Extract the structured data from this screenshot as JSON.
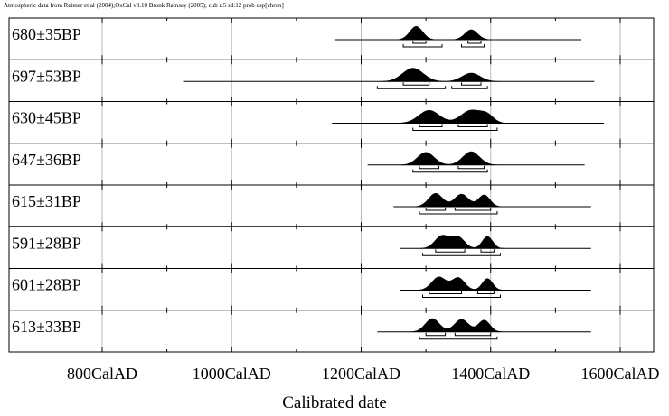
{
  "header": {
    "credit": "Atmospheric data from Reimer et al (2004);OxCal v3.10 Bronk Ramsey (2005); cub r:5 sd:12 prob usp[chron]"
  },
  "chart_data": {
    "type": "multiple-probability-distributions",
    "title": "",
    "xlabel": "Calibrated date",
    "ylabel": "",
    "xlim": [
      700,
      1650
    ],
    "grid": true,
    "x_ticks": [
      {
        "value": 800,
        "label": "800CalAD"
      },
      {
        "value": 1000,
        "label": "1000CalAD"
      },
      {
        "value": 1200,
        "label": "1200CalAD"
      },
      {
        "value": 1400,
        "label": "1400CalAD"
      },
      {
        "value": 1600,
        "label": "1600CalAD"
      }
    ],
    "series": [
      {
        "name": "680±35BP",
        "range": [
          1160,
          1540
        ],
        "peaks": [
          [
            1285,
            1.0,
            10
          ],
          [
            1370,
            0.75,
            10
          ]
        ],
        "sigma1": [
          [
            1280,
            1300
          ],
          [
            1365,
            1385
          ]
        ],
        "sigma2": [
          [
            1265,
            1325
          ],
          [
            1355,
            1390
          ]
        ]
      },
      {
        "name": "697±53BP",
        "range": [
          925,
          1560
        ],
        "peaks": [
          [
            1280,
            0.95,
            16
          ],
          [
            1370,
            0.6,
            14
          ]
        ],
        "sigma1": [
          [
            1265,
            1305
          ],
          [
            1355,
            1385
          ]
        ],
        "sigma2": [
          [
            1225,
            1330
          ],
          [
            1340,
            1395
          ]
        ]
      },
      {
        "name": "630±45BP",
        "range": [
          1155,
          1575
        ],
        "peaks": [
          [
            1305,
            0.95,
            16
          ],
          [
            1370,
            0.95,
            16
          ],
          [
            1395,
            0.5,
            10
          ]
        ],
        "sigma1": [
          [
            1290,
            1325
          ],
          [
            1350,
            1395
          ]
        ],
        "sigma2": [
          [
            1280,
            1410
          ]
        ]
      },
      {
        "name": "647±36BP",
        "range": [
          1210,
          1545
        ],
        "peaks": [
          [
            1300,
            0.9,
            13
          ],
          [
            1370,
            0.95,
            13
          ]
        ],
        "sigma1": [
          [
            1290,
            1320
          ],
          [
            1350,
            1390
          ]
        ],
        "sigma2": [
          [
            1280,
            1395
          ]
        ]
      },
      {
        "name": "615±31BP",
        "range": [
          1250,
          1555
        ],
        "peaks": [
          [
            1315,
            0.85,
            11
          ],
          [
            1355,
            0.8,
            11
          ],
          [
            1390,
            0.75,
            9
          ]
        ],
        "sigma1": [
          [
            1300,
            1330
          ],
          [
            1345,
            1400
          ]
        ],
        "sigma2": [
          [
            1290,
            1410
          ]
        ]
      },
      {
        "name": "591±28BP",
        "range": [
          1260,
          1555
        ],
        "peaks": [
          [
            1325,
            0.85,
            11
          ],
          [
            1350,
            0.75,
            10
          ],
          [
            1395,
            0.8,
            8
          ]
        ],
        "sigma1": [
          [
            1315,
            1360
          ],
          [
            1385,
            1405
          ]
        ],
        "sigma2": [
          [
            1295,
            1415
          ]
        ]
      },
      {
        "name": "601±28BP",
        "range": [
          1260,
          1555
        ],
        "peaks": [
          [
            1320,
            0.85,
            11
          ],
          [
            1350,
            0.8,
            10
          ],
          [
            1395,
            0.75,
            8
          ]
        ],
        "sigma1": [
          [
            1305,
            1355
          ],
          [
            1380,
            1405
          ]
        ],
        "sigma2": [
          [
            1295,
            1415
          ]
        ]
      },
      {
        "name": "613±33BP",
        "range": [
          1225,
          1555
        ],
        "peaks": [
          [
            1310,
            0.85,
            11
          ],
          [
            1355,
            0.8,
            11
          ],
          [
            1390,
            0.75,
            9
          ]
        ],
        "sigma1": [
          [
            1300,
            1330
          ],
          [
            1345,
            1400
          ]
        ],
        "sigma2": [
          [
            1290,
            1410
          ]
        ]
      }
    ]
  }
}
